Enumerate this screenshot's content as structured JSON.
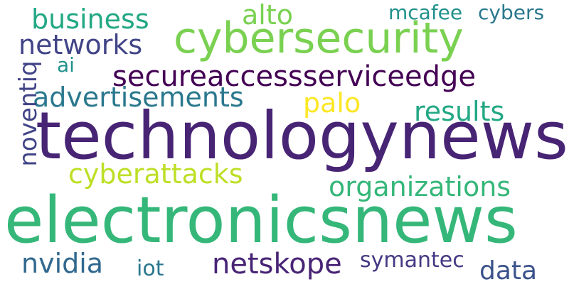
{
  "word_cloud": {
    "background": "#ffffff",
    "words": [
      {
        "id": "technologynews",
        "text": "technologynews",
        "color": "#482475"
      },
      {
        "id": "electronicsnews",
        "text": "electronicsnews",
        "color": "#35b779"
      },
      {
        "id": "cybersecurity",
        "text": "cybersecurity",
        "color": "#7ad151"
      },
      {
        "id": "secureaccessserviceedge",
        "text": "secureaccessserviceedge",
        "color": "#440154"
      },
      {
        "id": "advertisements",
        "text": "advertisements",
        "color": "#2a788e"
      },
      {
        "id": "business",
        "text": "business",
        "color": "#22a884"
      },
      {
        "id": "networks",
        "text": "networks",
        "color": "#414487"
      },
      {
        "id": "cyberattacks",
        "text": "cyberattacks",
        "color": "#bddf26"
      },
      {
        "id": "organizations",
        "text": "organizations",
        "color": "#35b779"
      },
      {
        "id": "results",
        "text": "results",
        "color": "#22a884"
      },
      {
        "id": "palo",
        "text": "palo",
        "color": "#fde725"
      },
      {
        "id": "alto",
        "text": "alto",
        "color": "#7ad151"
      },
      {
        "id": "mcafee",
        "text": "mcafee",
        "color": "#21918c"
      },
      {
        "id": "cybers",
        "text": "cybers",
        "color": "#2a788e"
      },
      {
        "id": "ai",
        "text": "ai",
        "color": "#21918c"
      },
      {
        "id": "noventiq",
        "text": "noventiq",
        "color": "#414487"
      },
      {
        "id": "nvidia",
        "text": "nvidia",
        "color": "#31688e"
      },
      {
        "id": "iot",
        "text": "iot",
        "color": "#2a788e"
      },
      {
        "id": "netskope",
        "text": "netskope",
        "color": "#482475"
      },
      {
        "id": "symantec",
        "text": "symantec",
        "color": "#443983"
      },
      {
        "id": "data",
        "text": "data",
        "color": "#3b528b"
      }
    ]
  }
}
